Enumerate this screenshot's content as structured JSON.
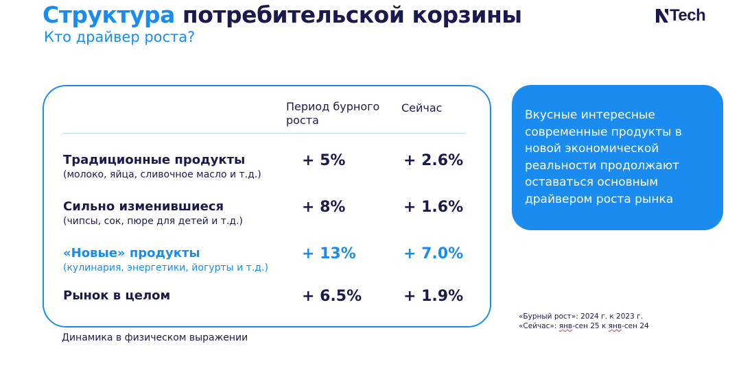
{
  "header": {
    "title_accent": "Структура",
    "title_rest": "потребительской корзины",
    "subtitle": "Кто драйвер роста?"
  },
  "logo": {
    "text": "Tech",
    "icon": "n-logo-icon",
    "color": "#1a1a4e"
  },
  "table": {
    "col_period": "Период бурного роста",
    "col_now": "Сейчас",
    "rows": [
      {
        "name": "Традиционные продукты",
        "note": "(молоко, яйца, сливочное масло и т.д.)",
        "period": "+ 5%",
        "now": "+ 2.6%",
        "highlight": false
      },
      {
        "name": "Сильно изменившиеся",
        "note": "(чипсы, сок, пюре для детей и т.д.)",
        "period": "+ 8%",
        "now": "+ 1.6%",
        "highlight": false
      },
      {
        "name": "«Новые» продукты",
        "note": "(кулинария, энергетики, йогурты и т.д.)",
        "period": "+ 13%",
        "now": "+ 7.0%",
        "highlight": true
      },
      {
        "name": "Рынок в целом",
        "note": "",
        "period": "+ 6.5%",
        "now": "+ 1.9%",
        "highlight": false
      }
    ]
  },
  "footnote": "Динамика в физическом выражении",
  "callout": {
    "text": "Вкусные интересные современные продукты в новой экономической реальности продолжают оставаться основным драйвером роста рынка"
  },
  "sources": {
    "line1": "«Бурный рост»: 2024 г. к 2023 г.",
    "line2_prefix": "«Сейчас»: ",
    "line2_a": "янв",
    "line2_mid": "-сен 25 к ",
    "line2_b": "янв",
    "line2_suffix": "-сен 24"
  },
  "colors": {
    "accent": "#1a8cf0",
    "text": "#1a1a4e",
    "divider": "#b9d8f6"
  }
}
